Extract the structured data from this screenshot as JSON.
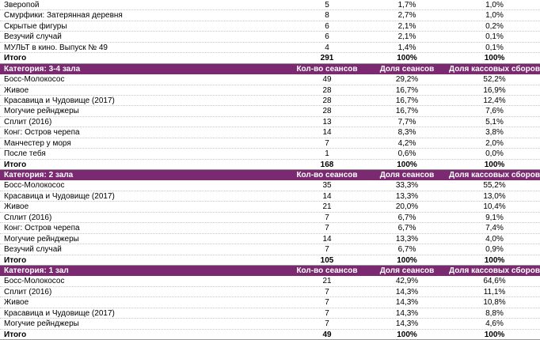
{
  "table": {
    "sections": [
      {
        "rows": [
          [
            "Зверопой",
            "5",
            "1,7%",
            "1,0%"
          ],
          [
            "Смурфики: Затерянная деревня",
            "8",
            "2,7%",
            "1,0%"
          ],
          [
            "Скрытые фигуры",
            "6",
            "2,1%",
            "0,2%"
          ],
          [
            "Везучий случай",
            "6",
            "2,1%",
            "0,1%"
          ],
          [
            "МУЛЬТ в кино. Выпуск № 49",
            "4",
            "1,4%",
            "0,1%"
          ]
        ],
        "total": [
          "Итого",
          "291",
          "100%",
          "100%"
        ]
      },
      {
        "header": [
          "Категория: 3-4 зала",
          "Кол-во сеансов",
          "Доля сеансов",
          "Доля кассовых сборов"
        ],
        "rows": [
          [
            "Босс-Молокосос",
            "49",
            "29,2%",
            "52,2%"
          ],
          [
            "Живое",
            "28",
            "16,7%",
            "16,9%"
          ],
          [
            "Красавица и Чудовище (2017)",
            "28",
            "16,7%",
            "12,4%"
          ],
          [
            "Могучие рейнджеры",
            "28",
            "16,7%",
            "7,6%"
          ],
          [
            "Сплит (2016)",
            "13",
            "7,7%",
            "5,1%"
          ],
          [
            "Конг: Остров черепа",
            "14",
            "8,3%",
            "3,8%"
          ],
          [
            "Манчестер у моря",
            "7",
            "4,2%",
            "2,0%"
          ],
          [
            "После тебя",
            "1",
            "0,6%",
            "0,0%"
          ]
        ],
        "total": [
          "Итого",
          "168",
          "100%",
          "100%"
        ]
      },
      {
        "header": [
          "Категория: 2 зала",
          "Кол-во сеансов",
          "Доля сеансов",
          "Доля кассовых сборов"
        ],
        "rows": [
          [
            "Босс-Молокосос",
            "35",
            "33,3%",
            "55,2%"
          ],
          [
            "Красавица и Чудовище (2017)",
            "14",
            "13,3%",
            "13,0%"
          ],
          [
            "Живое",
            "21",
            "20,0%",
            "10,4%"
          ],
          [
            "Сплит (2016)",
            "7",
            "6,7%",
            "9,1%"
          ],
          [
            "Конг: Остров черепа",
            "7",
            "6,7%",
            "7,4%"
          ],
          [
            "Могучие рейнджеры",
            "14",
            "13,3%",
            "4,0%"
          ],
          [
            "Везучий случай",
            "7",
            "6,7%",
            "0,9%"
          ]
        ],
        "total": [
          "Итого",
          "105",
          "100%",
          "100%"
        ]
      },
      {
        "header": [
          "Категория: 1 зал",
          "Кол-во сеансов",
          "Доля сеансов",
          "Доля кассовых сборов"
        ],
        "rows": [
          [
            "Босс-Молокосос",
            "21",
            "42,9%",
            "64,6%"
          ],
          [
            "Сплит (2016)",
            "7",
            "14,3%",
            "11,1%"
          ],
          [
            "Живое",
            "7",
            "14,3%",
            "10,8%"
          ],
          [
            "Красавица и Чудовище (2017)",
            "7",
            "14,3%",
            "8,8%"
          ],
          [
            "Могучие рейнджеры",
            "7",
            "14,3%",
            "4,6%"
          ]
        ],
        "total": [
          "Итого",
          "49",
          "100%",
          "100%"
        ]
      }
    ]
  }
}
